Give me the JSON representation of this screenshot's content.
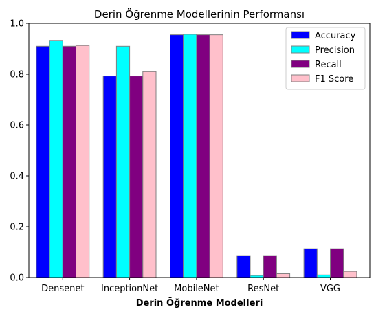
{
  "chart_data": {
    "type": "bar",
    "title": "Derin Öğrenme Modellerinin Performansı",
    "xlabel": "Derin Öğrenme Modelleri",
    "ylabel": "",
    "ylim": [
      0,
      1.0
    ],
    "yticks": [
      "0.0",
      "0.2",
      "0.4",
      "0.6",
      "0.8",
      "1.0"
    ],
    "ytick_values": [
      0,
      0.2,
      0.4,
      0.6,
      0.8,
      1.0
    ],
    "categories": [
      "Densenet",
      "InceptionNet",
      "MobileNet",
      "ResNet",
      "VGG"
    ],
    "series": [
      {
        "name": "Accuracy",
        "color": "#0000ff",
        "values": [
          0.91,
          0.793,
          0.955,
          0.086,
          0.113
        ]
      },
      {
        "name": "Precision",
        "color": "#00ffff",
        "values": [
          0.933,
          0.91,
          0.957,
          0.008,
          0.01
        ]
      },
      {
        "name": "Recall",
        "color": "#800080",
        "values": [
          0.91,
          0.793,
          0.955,
          0.086,
          0.113
        ]
      },
      {
        "name": "F1 Score",
        "color": "#ffc0cb",
        "values": [
          0.913,
          0.81,
          0.955,
          0.015,
          0.024
        ]
      }
    ],
    "bar_edge_color": "#808080",
    "legend_position": "top-right",
    "grid": false
  }
}
